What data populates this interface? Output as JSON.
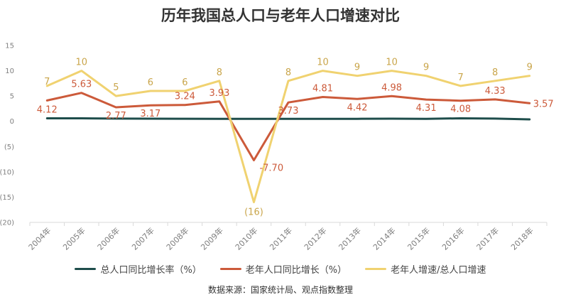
{
  "chart_data": {
    "type": "line",
    "title": "历年我国总人口与老年人口增速对比",
    "categories": [
      "2004年",
      "2005年",
      "2006年",
      "2007年",
      "2008年",
      "2009年",
      "2010年",
      "2011年",
      "2012年",
      "2013年",
      "2014年",
      "2015年",
      "2016年",
      "2017年",
      "2018年"
    ],
    "ylim": [
      -20,
      15
    ],
    "yticks": [
      "15",
      "10",
      "5",
      "0",
      "(5)",
      "(10)",
      "(15)",
      "(20)"
    ],
    "ytick_values": [
      15,
      10,
      5,
      0,
      -5,
      -10,
      -15,
      -20
    ],
    "grid": false,
    "legend_position": "bottom",
    "series": [
      {
        "name": "总人口同比增长率（%）",
        "color": "#1e4d4b",
        "values": [
          0.59,
          0.59,
          0.53,
          0.52,
          0.51,
          0.49,
          0.48,
          0.48,
          0.5,
          0.49,
          0.52,
          0.5,
          0.59,
          0.53,
          0.38
        ],
        "labels": null
      },
      {
        "name": "老年人口同比增长（%）",
        "color": "#cc5a3a",
        "values": [
          4.12,
          5.63,
          2.77,
          3.17,
          3.24,
          3.93,
          -7.7,
          3.73,
          4.81,
          4.42,
          4.98,
          4.31,
          4.08,
          4.33,
          3.57
        ],
        "labels": [
          "4.12",
          "5.63",
          "2.77",
          "3.17",
          "3.24",
          "3.93",
          "-7.70",
          "3.73",
          "4.81",
          "4.42",
          "4.98",
          "4.31",
          "4.08",
          "4.33",
          "3.57"
        ]
      },
      {
        "name": "老年人增速/总人口增速",
        "color": "#f0d270",
        "label_color": "#c9a54a",
        "values": [
          7,
          10,
          5,
          6,
          6,
          8,
          -16,
          8,
          10,
          9,
          10,
          9,
          7,
          8,
          9
        ],
        "labels": [
          "7",
          "10",
          "5",
          "6",
          "6",
          "8",
          "(16)",
          "8",
          "10",
          "9",
          "10",
          "9",
          "7",
          "8",
          "9"
        ]
      }
    ],
    "source": "数据来源：国家统计局、观点指数整理"
  }
}
